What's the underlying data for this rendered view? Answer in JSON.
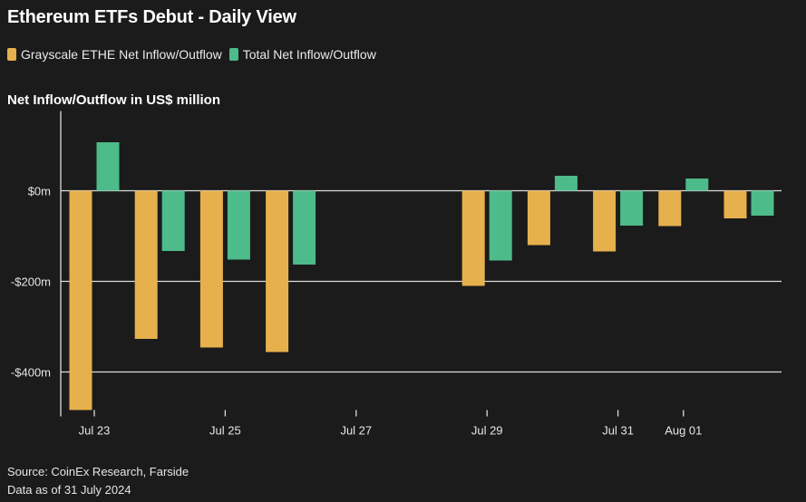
{
  "title": "Ethereum ETFs Debut - Daily View",
  "legend": [
    {
      "label": "Grayscale ETHE Net Inflow/Outflow",
      "color": "#e6b04c"
    },
    {
      "label": "Total Net Inflow/Outflow",
      "color": "#4dbb8a"
    }
  ],
  "y_axis_title": "Net Inflow/Outflow in US$ million",
  "source_lines": [
    "Source: CoinEx Research, Farside",
    "Data as of 31 July 2024"
  ],
  "chart_data": {
    "type": "bar",
    "title": "Ethereum ETFs Debut - Daily View",
    "ylabel": "Net Inflow/Outflow in US$ million",
    "xlabel": "",
    "ylim": [
      -484,
      146
    ],
    "y_ticks": [
      {
        "value": 0,
        "label": "$0m"
      },
      {
        "value": -200,
        "label": "-$200m"
      },
      {
        "value": -400,
        "label": "-$400m"
      }
    ],
    "x_ticks": [
      "Jul 23",
      "Jul 25",
      "Jul 27",
      "Jul 29",
      "Jul 31",
      "Aug 01"
    ],
    "categories": [
      "Jul 23",
      "Jul 24",
      "Jul 25",
      "Jul 26",
      "Jul 29",
      "Jul 30",
      "Jul 31",
      "Aug 01",
      "Aug 02"
    ],
    "series": [
      {
        "name": "Grayscale ETHE Net Inflow/Outflow",
        "color": "#e6b04c",
        "values": [
          -484,
          -327,
          -346,
          -356,
          -210,
          -120,
          -134,
          -78,
          -61
        ]
      },
      {
        "name": "Total Net Inflow/Outflow",
        "color": "#4dbb8a",
        "values": [
          107,
          -133,
          -152,
          -163,
          -154,
          33,
          -77,
          27,
          -55
        ]
      }
    ],
    "grid": true,
    "legend_position": "top-left"
  }
}
